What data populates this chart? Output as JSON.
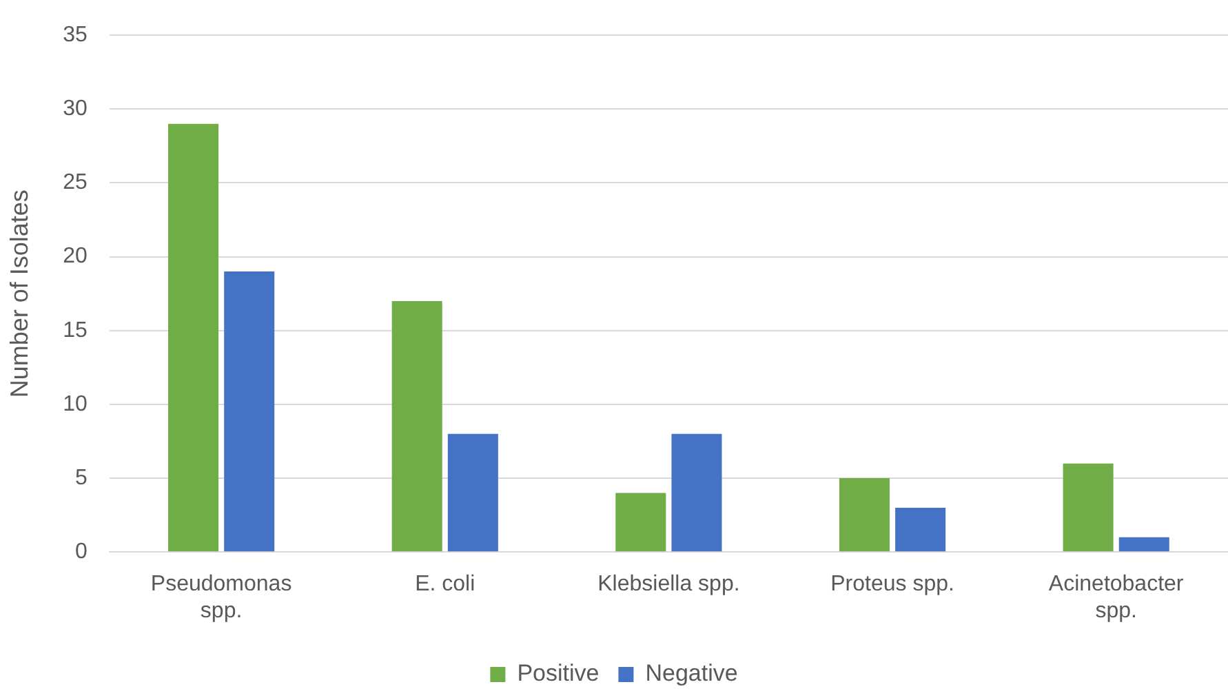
{
  "chart_data": {
    "type": "bar",
    "ylabel": "Number of Isolates",
    "categories": [
      "Pseudomonas spp.",
      "E. coli",
      "Klebsiella spp.",
      "Proteus spp.",
      "Acinetobacter spp."
    ],
    "series": [
      {
        "name": "Positive",
        "color": "#70ad47",
        "values": [
          29,
          17,
          4,
          5,
          6
        ]
      },
      {
        "name": "Negative",
        "color": "#4472c4",
        "values": [
          19,
          8,
          8,
          3,
          1
        ]
      }
    ],
    "ylim": [
      0,
      35
    ],
    "yticks": [
      0,
      5,
      10,
      15,
      20,
      25,
      30,
      35
    ],
    "grid": "y",
    "legend": "bottom"
  }
}
